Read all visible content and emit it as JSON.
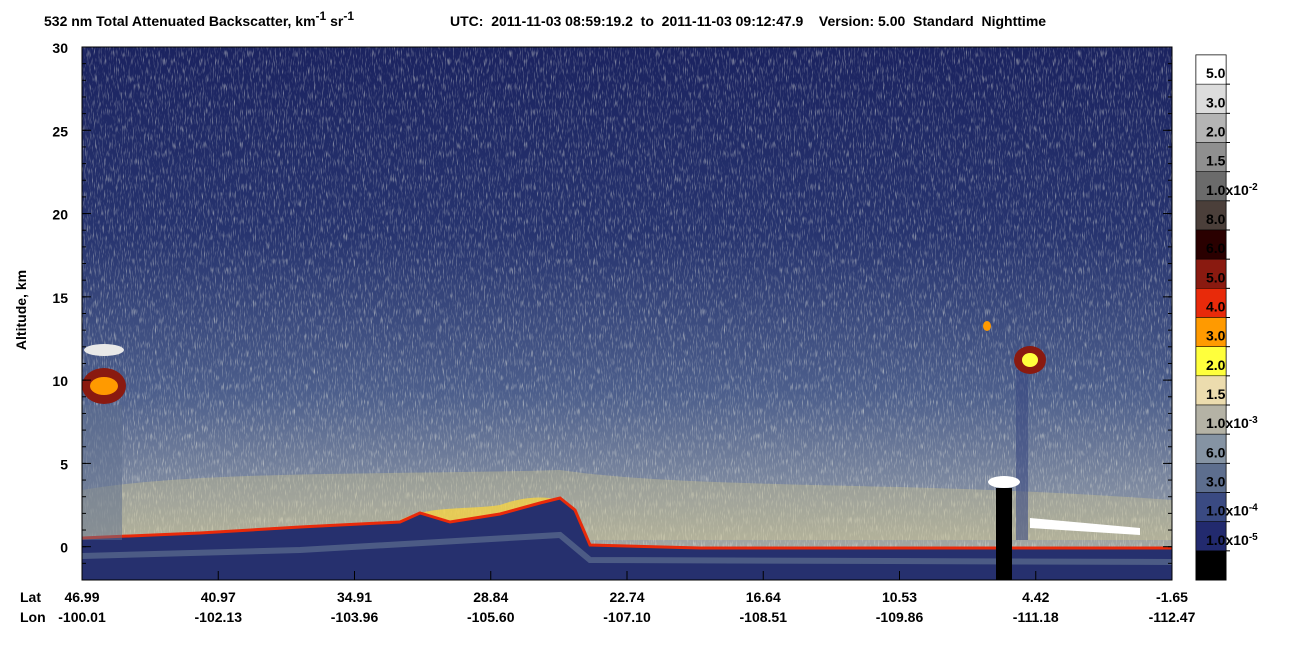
{
  "chart_data": {
    "type": "heatmap",
    "title": [
      "532 nm Total Attenuated Backscatter, km",
      "-1",
      " sr",
      "-1"
    ],
    "subtitle": "UTC:  2011-11-03 08:59:19.2  to  2011-11-03 09:12:47.9    Version: 5.00  Standard  Nighttime",
    "y_label": "Altitude, km",
    "ylim": [
      -2,
      30
    ],
    "yticks": [
      0,
      5,
      10,
      15,
      20,
      25,
      30
    ],
    "x_row_labels": [
      "Lat",
      "Lon"
    ],
    "lat_labels": [
      "46.99",
      "40.97",
      "34.91",
      "28.84",
      "22.74",
      "16.64",
      "10.53",
      "4.42",
      "-1.65"
    ],
    "lon_labels": [
      "-100.01",
      "-102.13",
      "-103.96",
      "-105.60",
      "-107.10",
      "-108.51",
      "-109.86",
      "-111.18",
      "-112.47"
    ],
    "colorbar": {
      "colors": [
        "#ffffff",
        "#dcdcdc",
        "#b4b4b4",
        "#8f8f8f",
        "#6b6b6b",
        "#4b3f3a",
        "#2a0000",
        "#8a1a10",
        "#e82a0a",
        "#ff9a00",
        "#ffff3c",
        "#ecdcae",
        "#b4b2a5",
        "#8593a3",
        "#5d6e8e",
        "#3a4a82",
        "#222a6e",
        "#000000"
      ],
      "labels": [
        "5.0",
        "3.0",
        "2.0",
        "1.5",
        [
          "1.0x10",
          "-2"
        ],
        "8.0",
        "6.0",
        "5.0",
        "4.0",
        "3.0",
        "2.0",
        "1.5",
        [
          "1.0x10",
          "-3"
        ],
        "6.0",
        "3.0",
        [
          "1.0x10",
          "-4"
        ],
        [
          "1.0x10",
          "-5"
        ]
      ]
    }
  }
}
